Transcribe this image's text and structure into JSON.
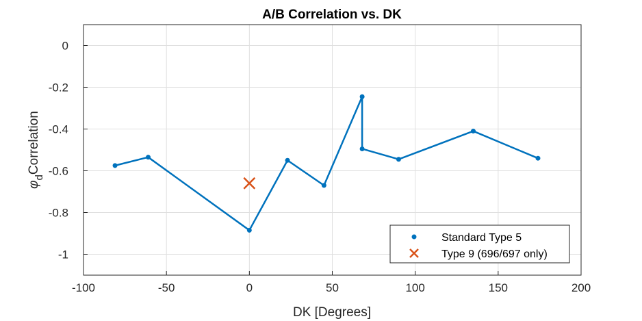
{
  "chart_data": {
    "type": "line",
    "title": "A/B Correlation vs. DK",
    "xlabel": "DK [Degrees]",
    "ylabel_symbol": "φ",
    "ylabel_subscript": "d",
    "ylabel_text": "Correlation",
    "xlim": [
      -100,
      200
    ],
    "ylim": [
      -1.1,
      0.1
    ],
    "xticks": [
      -100,
      -50,
      0,
      50,
      100,
      150,
      200
    ],
    "yticks": [
      0,
      -0.2,
      -0.4,
      -0.6,
      -0.8,
      -1
    ],
    "xtick_labels": [
      "-100",
      "-50",
      "0",
      "50",
      "100",
      "150",
      "200"
    ],
    "ytick_labels": [
      "0",
      "-0.2",
      "-0.4",
      "-0.6",
      "-0.8",
      "-1"
    ],
    "grid": true,
    "legend_position": "bottom-right",
    "series": [
      {
        "name": "Standard Type 5",
        "marker": "dot",
        "color": "#0072BD",
        "x": [
          -81,
          -61,
          0,
          23,
          45,
          68,
          68,
          90,
          135,
          174
        ],
        "y": [
          -0.575,
          -0.535,
          -0.885,
          -0.55,
          -0.67,
          -0.245,
          -0.495,
          -0.545,
          -0.41,
          -0.54
        ]
      },
      {
        "name": "Type 9 (696/697 only)",
        "marker": "x",
        "color": "#D95319",
        "x": [
          0
        ],
        "y": [
          -0.66
        ]
      }
    ]
  }
}
